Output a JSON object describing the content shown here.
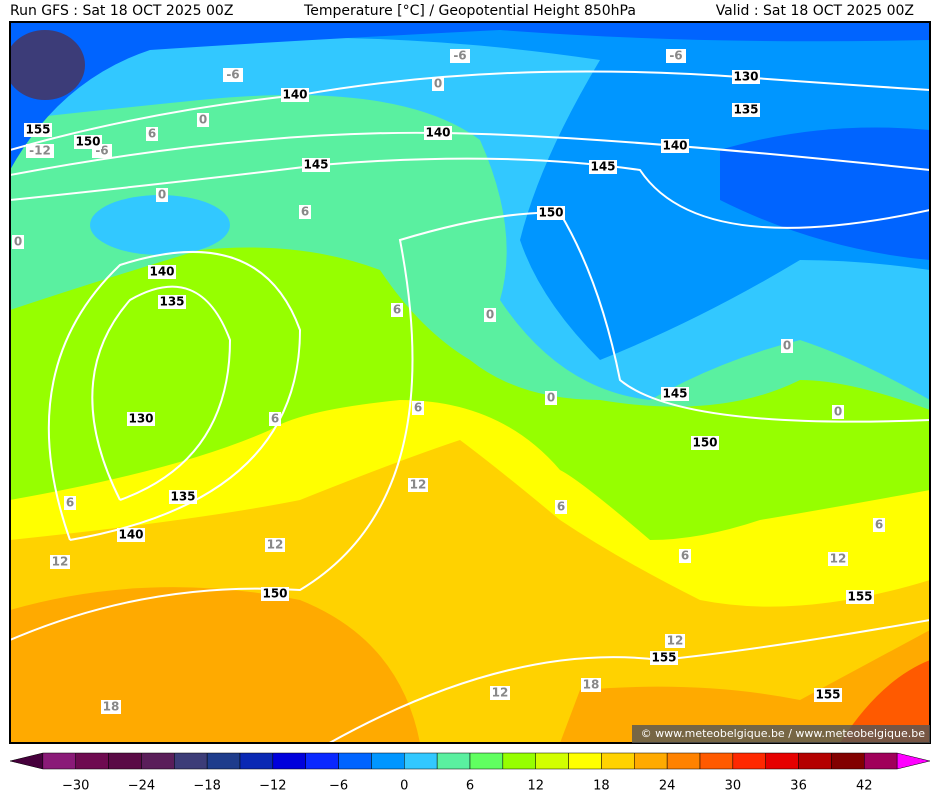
{
  "header": {
    "run": "Run GFS : Sat 18 OCT 2025 00Z",
    "title": "Temperature [°C] / Geopotential Height 850hPa",
    "valid": "Valid : Sat 18 OCT 2025 00Z"
  },
  "height_labels": [
    155,
    150,
    140,
    140,
    145,
    130,
    135,
    140,
    145,
    150,
    140,
    135,
    130,
    145,
    150,
    135,
    140,
    150,
    155,
    155,
    155
  ],
  "temperature_labels": [
    -6,
    -6,
    -6,
    0,
    0,
    -12,
    -6,
    6,
    0,
    6,
    0,
    6,
    0,
    0,
    0,
    0,
    6,
    6,
    12,
    6,
    6,
    12,
    12,
    6,
    6,
    12,
    12,
    12,
    18,
    18
  ],
  "colorbar": {
    "ticks": [
      "−30",
      "−24",
      "−18",
      "−12",
      "−6",
      "0",
      "6",
      "12",
      "18",
      "24",
      "30",
      "36",
      "42"
    ],
    "colors": [
      "#46003c",
      "#8a1a78",
      "#6e0a50",
      "#5a0a46",
      "#5a1e5a",
      "#3c3c78",
      "#1e3c8c",
      "#0a28b4",
      "#0000dc",
      "#0a28ff",
      "#0064ff",
      "#0096ff",
      "#32c8ff",
      "#5af0a0",
      "#60ff60",
      "#96ff00",
      "#d2ff00",
      "#ffff00",
      "#ffd200",
      "#ffaa00",
      "#ff8200",
      "#ff5a00",
      "#ff2800",
      "#e60000",
      "#b40000",
      "#820000",
      "#a0005a",
      "#ff00ff"
    ]
  },
  "credit": "© www.meteobelgique.be / www.meteobelgique.be"
}
